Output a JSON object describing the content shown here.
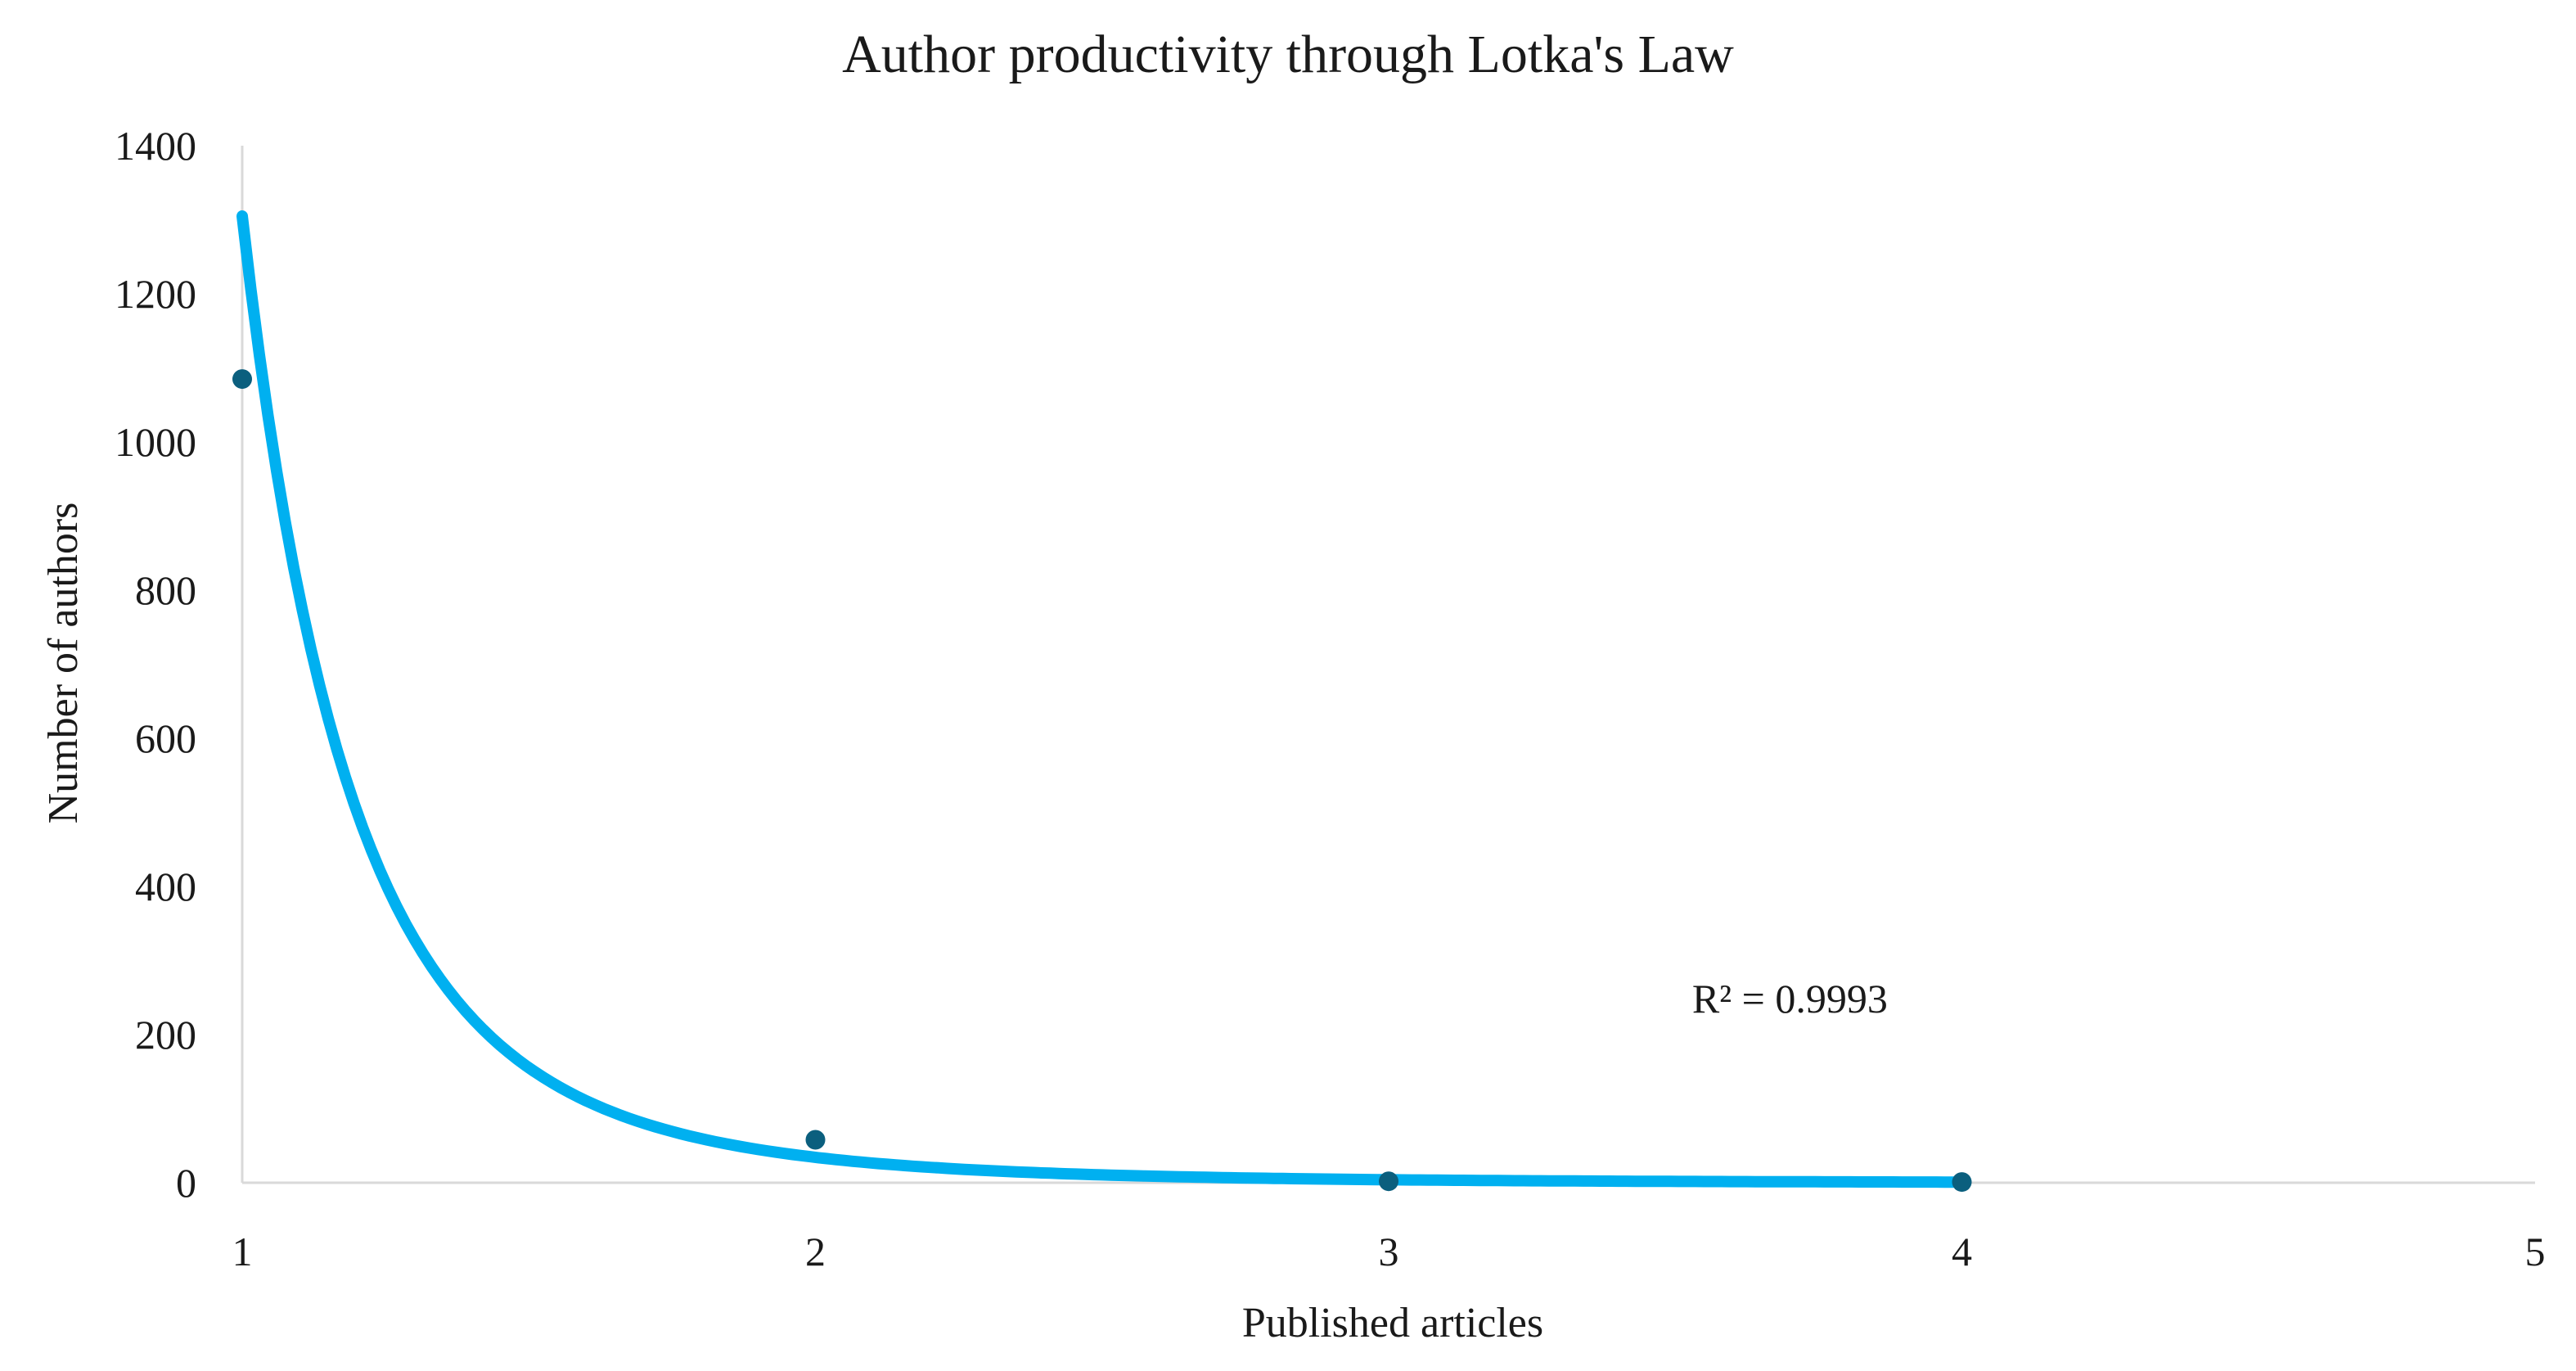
{
  "chart_data": {
    "type": "scatter",
    "title": "Author productivity through Lotka's Law",
    "xlabel": "Published articles",
    "ylabel": "Number of authors",
    "xlim": [
      1,
      5
    ],
    "ylim": [
      0,
      1400
    ],
    "x_ticks": [
      1,
      2,
      3,
      4,
      5
    ],
    "y_ticks": [
      0,
      200,
      400,
      600,
      800,
      1000,
      1200,
      1400
    ],
    "grid": false,
    "legend": "none",
    "series": [
      {
        "type": "scatter",
        "x": [
          1,
          2,
          3,
          4
        ],
        "y": [
          1085,
          58,
          2,
          1
        ],
        "color": "#0b5f7e"
      },
      {
        "type": "trendline",
        "model": "power",
        "coefficient": 1305,
        "exponent": -5.25,
        "x_range": [
          1,
          4
        ],
        "color": "#00b0f0"
      }
    ],
    "annotations": [
      {
        "text": "R² = 0.9993",
        "x": 3.7,
        "y": 230
      }
    ],
    "colors": {
      "axis": "#d9d9d9",
      "points": "#0b5f7e",
      "trendline": "#00b0f0",
      "text": "#1a1a1a"
    }
  }
}
